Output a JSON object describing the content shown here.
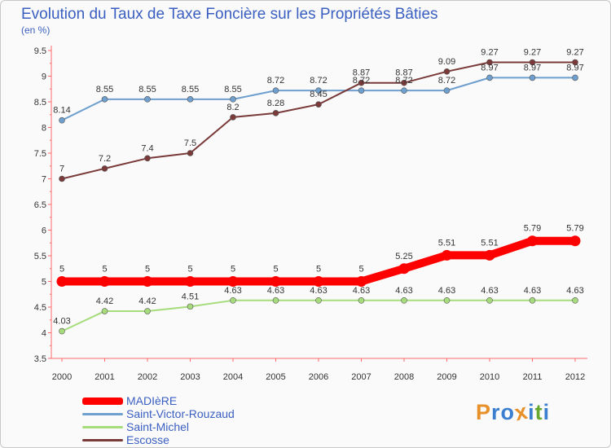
{
  "chart_data": {
    "type": "line",
    "title": "Evolution du Taux de Taxe Foncière sur les Propriétés Bâties",
    "unit_label": "(en %)",
    "x": [
      "2000",
      "2001",
      "2002",
      "2003",
      "2004",
      "2005",
      "2006",
      "2007",
      "2008",
      "2009",
      "2010",
      "2011",
      "2012"
    ],
    "ylim": [
      3.5,
      9.5
    ],
    "yticks": [
      "3.5",
      "4",
      "4.5",
      "5",
      "5.5",
      "6",
      "6.5",
      "7",
      "7.5",
      "8",
      "8.5",
      "9",
      "9.5"
    ],
    "grid": false,
    "legend_position": "bottom-left",
    "series": [
      {
        "name": "MADIèRE",
        "color": "#ff0000",
        "values": [
          5,
          5,
          5,
          5,
          5,
          5,
          5,
          5,
          5.25,
          5.51,
          5.51,
          5.79,
          5.79
        ],
        "labels": [
          "5",
          "5",
          "5",
          "5",
          "5",
          "5",
          "5",
          "5",
          "5.25",
          "5.51",
          "5.51",
          "5.79",
          "5.79"
        ]
      },
      {
        "name": "Saint-Victor-Rouzaud",
        "color": "#6e9fcf",
        "values": [
          8.14,
          8.55,
          8.55,
          8.55,
          8.55,
          8.72,
          8.72,
          8.72,
          8.72,
          8.72,
          8.97,
          8.97,
          8.97
        ],
        "labels": [
          "8.14",
          "8.55",
          "8.55",
          "8.55",
          "8.55",
          "8.72",
          "8.72",
          "8.72",
          "8.72",
          "8.72",
          "8.97",
          "8.97",
          "8.97"
        ]
      },
      {
        "name": "Saint-Michel",
        "color": "#a6dc7c",
        "values": [
          4.03,
          4.42,
          4.42,
          4.51,
          4.63,
          4.63,
          4.63,
          4.63,
          4.63,
          4.63,
          4.63,
          4.63,
          4.63
        ],
        "labels": [
          "4.03",
          "4.42",
          "4.42",
          "4.51",
          "4.63",
          "4.63",
          "4.63",
          "4.63",
          "4.63",
          "4.63",
          "4.63",
          "4.63",
          "4.63"
        ]
      },
      {
        "name": "Escosse",
        "color": "#7a3a3a",
        "values": [
          7,
          7.2,
          7.4,
          7.5,
          8.2,
          8.28,
          8.45,
          8.87,
          8.87,
          9.09,
          9.27,
          9.27,
          9.27
        ],
        "labels": [
          "7",
          "7.2",
          "7.4",
          "7.5",
          "8.2",
          "8.28",
          "8.45",
          "8.87",
          "8.87",
          "9.09",
          "9.27",
          "9.27",
          "9.27"
        ]
      }
    ]
  },
  "logo": {
    "letters": [
      "P",
      "r",
      "o",
      "x",
      "i",
      "t",
      "i"
    ],
    "colors": [
      "#e8902a",
      "#3a7fd0",
      "#3a7fd0",
      "#e8902a",
      "#3a7fd0",
      "#66a830",
      "#3a7fd0"
    ]
  }
}
